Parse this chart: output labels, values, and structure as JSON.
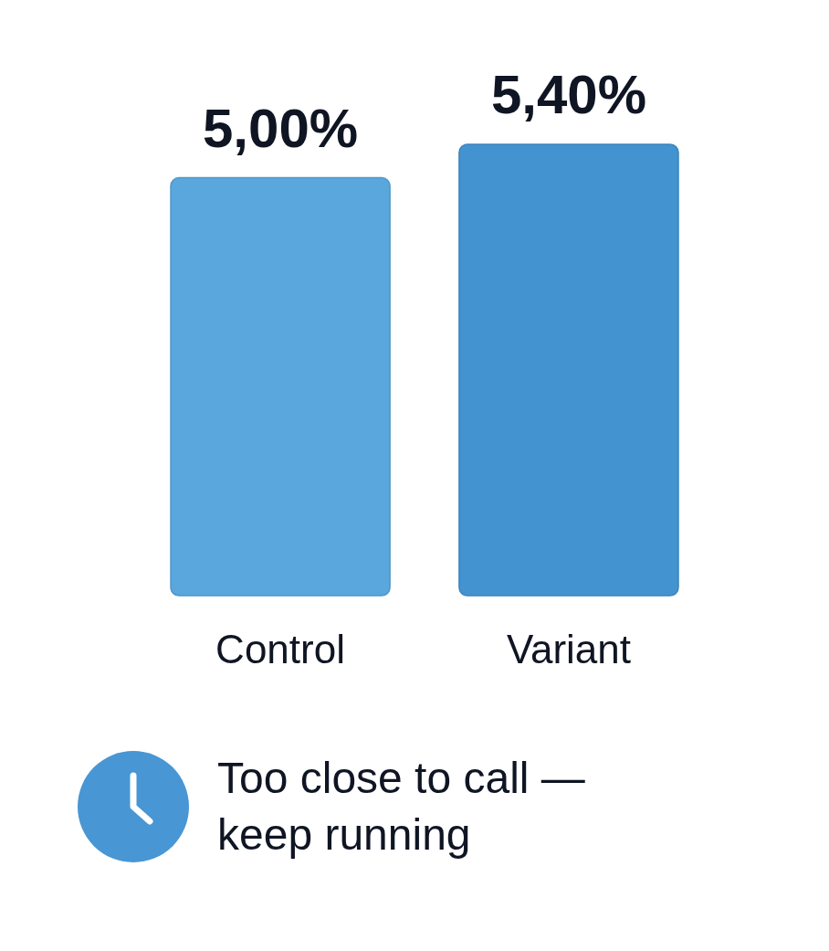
{
  "chart_data": {
    "type": "bar",
    "categories": [
      "Control",
      "Variant"
    ],
    "values": [
      5.0,
      5.4
    ],
    "colors": [
      "#5aa7de",
      "#4493d1"
    ],
    "value_labels": [
      "5,00%",
      "5,40%"
    ],
    "annotations": [
      "Too close to call — keep running"
    ]
  }
}
